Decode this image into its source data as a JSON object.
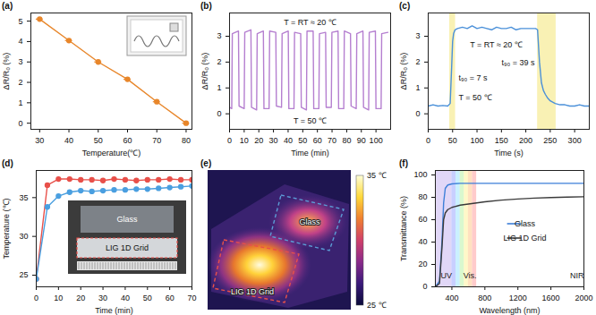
{
  "chart_data": [
    {
      "panel": "(a)",
      "type": "scatter",
      "x_label": "Temperature(℃)",
      "y_label": "ΔR/R₀ (%)",
      "x": [
        30,
        40,
        50,
        60,
        70,
        80
      ],
      "series": [
        {
          "values": [
            5.1,
            4.05,
            3.0,
            2.15,
            1.05,
            0.0
          ],
          "x_errors": [
            1.2,
            1.2,
            1.2,
            1.2,
            1.2,
            1.2
          ],
          "color": "#e8862a",
          "marker": "circle",
          "line_style": "solid"
        }
      ],
      "xlim": [
        27,
        82
      ],
      "xticks": [
        30,
        40,
        50,
        60,
        70,
        80
      ],
      "ylim": [
        -0.3,
        5.4
      ],
      "yticks": [
        0,
        1,
        2,
        3,
        4,
        5
      ]
    },
    {
      "panel": "(b)",
      "type": "line",
      "x_label": "Time (min)",
      "y_label": "ΔR/R₀ (%)",
      "annotations": [
        "T = RT ≈ 20 ℃",
        "T = 50 ℃"
      ],
      "x": [
        0,
        1.5,
        1.9,
        6.1,
        6.5,
        10,
        10.4,
        14.6,
        15,
        18.5,
        18.9,
        23.1,
        23.5,
        27,
        27.4,
        31.6,
        32,
        35.5,
        35.9,
        40.1,
        40.5,
        44,
        44.4,
        48.6,
        49,
        52.5,
        52.9,
        57.1,
        57.5,
        61,
        61.4,
        65.6,
        66,
        69.5,
        69.9,
        74.1,
        74.5,
        78,
        78.4,
        82.6,
        83,
        86.5,
        86.9,
        91.1,
        91.5,
        95,
        95.4,
        99.6,
        100,
        103.5,
        103.9,
        108.1
      ],
      "series": [
        {
          "values": [
            0.25,
            0.2,
            3.1,
            3.2,
            0.3,
            0.2,
            3.15,
            3.25,
            0.25,
            0.15,
            3.1,
            3.2,
            0.2,
            0.2,
            3.2,
            3.15,
            0.3,
            0.25,
            3.1,
            3.2,
            0.2,
            0.2,
            3.15,
            3.1,
            0.25,
            0.15,
            3.2,
            3.2,
            0.2,
            0.2,
            3.1,
            3.15,
            0.25,
            0.25,
            3.15,
            3.2,
            0.2,
            0.2,
            3.2,
            3.1,
            0.3,
            0.2,
            3.1,
            3.2,
            0.25,
            0.15,
            3.15,
            3.2,
            0.2,
            0.2,
            3.1,
            3.15
          ],
          "color": "#b57fd0"
        }
      ],
      "xlim": [
        0,
        110
      ],
      "xticks": [
        0,
        10,
        20,
        30,
        40,
        50,
        60,
        70,
        80,
        90,
        100
      ],
      "ylim": [
        -0.6,
        3.9
      ],
      "yticks": [
        0,
        1,
        2,
        3
      ]
    },
    {
      "panel": "(c)",
      "type": "line",
      "x_label": "Time (s)",
      "y_label": "ΔR/R₀ (%)",
      "annotations": [
        "T = RT ≈ 20 ℃",
        "t₉₀ = 7 s",
        "T = 50 ℃",
        "t₉₀ = 39 s"
      ],
      "highlight_ranges": [
        [
          44,
          56
        ],
        [
          224,
          262
        ]
      ],
      "x": [
        0,
        10,
        20,
        30,
        40,
        45,
        48,
        50,
        52,
        55,
        60,
        70,
        80,
        90,
        100,
        110,
        120,
        130,
        140,
        150,
        160,
        170,
        180,
        190,
        200,
        210,
        220,
        224,
        228,
        232,
        236,
        240,
        245,
        250,
        255,
        260,
        270,
        280,
        290,
        300,
        310,
        320,
        330
      ],
      "series": [
        {
          "values": [
            0.3,
            0.35,
            0.3,
            0.32,
            0.3,
            0.4,
            1.8,
            2.8,
            3.1,
            3.25,
            3.3,
            3.35,
            3.3,
            3.4,
            3.3,
            3.35,
            3.3,
            3.25,
            3.35,
            3.3,
            3.3,
            3.35,
            3.25,
            3.3,
            3.3,
            3.3,
            3.3,
            3.25,
            2.0,
            1.2,
            0.9,
            0.75,
            0.6,
            0.5,
            0.45,
            0.4,
            0.35,
            0.35,
            0.3,
            0.3,
            0.35,
            0.3,
            0.3
          ],
          "color": "#4a90d9"
        }
      ],
      "xlim": [
        0,
        330
      ],
      "xticks": [
        0,
        50,
        100,
        150,
        200,
        250,
        300
      ],
      "ylim": [
        -0.6,
        3.9
      ],
      "yticks": [
        0,
        1,
        2,
        3
      ]
    },
    {
      "panel": "(d)",
      "type": "line",
      "x_label": "Time (min)",
      "y_label": "Temperature (℃)",
      "x": [
        0,
        5,
        10,
        15,
        20,
        25,
        30,
        35,
        40,
        45,
        50,
        55,
        60,
        65,
        70
      ],
      "series": [
        {
          "name": "LIG 1D Grid",
          "color": "#e8504a",
          "marker": "circle",
          "values": [
            24.5,
            36.6,
            37.4,
            37.4,
            37.3,
            37.3,
            37.2,
            37.4,
            37.3,
            37.2,
            37.3,
            37.3,
            37.4,
            37.3,
            37.3
          ]
        },
        {
          "name": "Glass",
          "color": "#4a9fe0",
          "marker": "circle",
          "values": [
            24.5,
            33.8,
            35.2,
            35.7,
            35.9,
            35.8,
            35.9,
            36.0,
            36.0,
            36.1,
            36.1,
            36.2,
            36.3,
            36.4,
            36.5
          ]
        }
      ],
      "xlim": [
        0,
        70
      ],
      "xticks": [
        0,
        10,
        20,
        30,
        40,
        50,
        60,
        70
      ],
      "ylim": [
        23.5,
        38.5
      ],
      "yticks": [
        25,
        30,
        35
      ]
    },
    {
      "panel": "(e)",
      "type": "image",
      "regions": [
        {
          "label": "Glass",
          "color": "#5b9bd5"
        },
        {
          "label": "LIG 1D Grid",
          "color": "#e8504a"
        }
      ],
      "colorbar": {
        "range": [
          25,
          35
        ],
        "ticks": [
          {
            "value": 35,
            "label": "35 ℃"
          },
          {
            "value": 25,
            "label": "25 ℃"
          }
        ]
      }
    },
    {
      "panel": "(f)",
      "type": "line",
      "x_label": "Wavelength (nm)",
      "y_label": "Transmittance (%)",
      "bands": [
        {
          "label": "UV",
          "range": [
            200,
            400
          ]
        },
        {
          "label": "Vis.",
          "range": [
            400,
            700
          ]
        },
        {
          "label": "NIR",
          "range": [
            700,
            2000
          ]
        }
      ],
      "x": [
        200,
        250,
        280,
        300,
        320,
        350,
        400,
        500,
        600,
        800,
        1000,
        1200,
        1400,
        1600,
        1800,
        2000
      ],
      "series": [
        {
          "name": "Glass",
          "color": "#3d7fd9",
          "values": [
            0,
            5,
            40,
            75,
            88,
            91,
            92,
            92.5,
            92.5,
            92.5,
            92.5,
            92.5,
            92.5,
            92.5,
            92.5,
            92.5
          ]
        },
        {
          "name": "LIG 1D Grid",
          "color": "#3a3a3a",
          "values": [
            0,
            3,
            35,
            60,
            66,
            69,
            71,
            73,
            74,
            76,
            77.5,
            78.5,
            79.3,
            79.8,
            80.2,
            80.5
          ]
        }
      ],
      "legend": "right",
      "xlim": [
        200,
        2000
      ],
      "xticks": [
        400,
        800,
        1200,
        1600,
        2000
      ],
      "ylim": [
        0,
        104
      ],
      "yticks": [
        0,
        20,
        40,
        60,
        80,
        100
      ]
    }
  ]
}
